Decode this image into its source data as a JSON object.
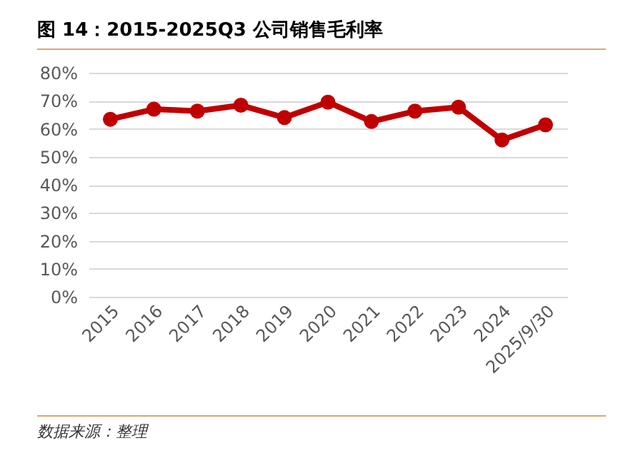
{
  "chart_data": {
    "type": "line",
    "title": "图 14：2015-2025Q3 公司销售毛利率",
    "categories": [
      "2015",
      "2016",
      "2017",
      "2018",
      "2019",
      "2020",
      "2021",
      "2022",
      "2023",
      "2024",
      "2025/9/30"
    ],
    "series": [
      {
        "color": "#c00000",
        "values": [
          63.4,
          67.0,
          66.3,
          68.4,
          64.0,
          69.5,
          62.6,
          66.3,
          67.7,
          56.0,
          61.4
        ]
      }
    ],
    "ylim": [
      0,
      80
    ],
    "yticks": [
      {
        "value": 0,
        "label": "0%"
      },
      {
        "value": 10,
        "label": "10%"
      },
      {
        "value": 20,
        "label": "20%"
      },
      {
        "value": 30,
        "label": "30%"
      },
      {
        "value": 40,
        "label": "40%"
      },
      {
        "value": 50,
        "label": "50%"
      },
      {
        "value": 60,
        "label": "60%"
      },
      {
        "value": 70,
        "label": "70%"
      },
      {
        "value": 80,
        "label": "80%"
      }
    ],
    "grid": "y",
    "marker": "circle",
    "line_style": "solid",
    "annotations": [
      "数据来源：整理"
    ]
  }
}
